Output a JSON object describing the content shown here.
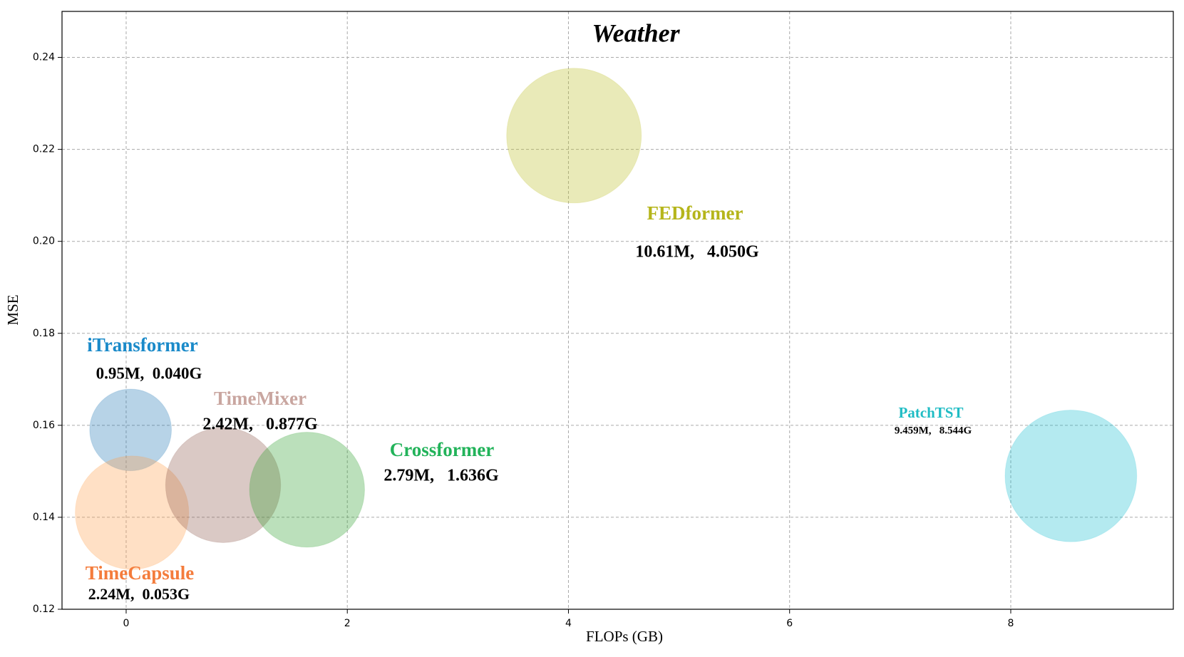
{
  "chart_data": {
    "type": "bubble",
    "title": "Weather",
    "x_label": "FLOPs (GB)",
    "y_label": "MSE",
    "xlim": [
      -0.58,
      9.47
    ],
    "ylim": [
      0.12,
      0.25
    ],
    "xticks": [
      0,
      2,
      4,
      6,
      8
    ],
    "yticks": [
      0.12,
      0.14,
      0.16,
      0.18,
      {
        "value": 0.2,
        "label": "0.20"
      },
      0.22,
      0.24
    ],
    "grid": true,
    "series": [
      {
        "name": "iTransformer",
        "color": "#1f77b4",
        "label_color": "#1a8ac9",
        "x": [
          0.04
        ],
        "values": [
          0.159
        ],
        "sizes": [
          2916
        ],
        "annotation": "0.95M,  0.040G"
      },
      {
        "name": "TimeCapsule",
        "color": "#ff9f4a",
        "label_color": "#f47c3c",
        "x": [
          0.053
        ],
        "values": [
          0.141
        ],
        "sizes": [
          5625
        ],
        "annotation": "2.24M,  0.053G"
      },
      {
        "name": "TimeMixer",
        "color": "#8c564b",
        "label_color": "#c9a6a0",
        "x": [
          0.877
        ],
        "values": [
          0.147
        ],
        "sizes": [
          5776
        ],
        "annotation": "2.42M,   0.877G"
      },
      {
        "name": "Crossformer",
        "color": "#2ca02c",
        "label_color": "#22b35a",
        "x": [
          1.636
        ],
        "values": [
          0.146
        ],
        "sizes": [
          5776
        ],
        "annotation": "2.79M,   1.636G"
      },
      {
        "name": "FEDformer",
        "color": "#bcbd22",
        "label_color": "#b5b51a",
        "x": [
          4.05
        ],
        "values": [
          0.223
        ],
        "sizes": [
          7921
        ],
        "annotation": "10.61M,   4.050G"
      },
      {
        "name": "PatchTST",
        "color": "#17becf",
        "label_color": "#1fbcc4",
        "x": [
          8.544
        ],
        "values": [
          0.149
        ],
        "sizes": [
          7569
        ],
        "annotation": "9.459M,   8.544G"
      }
    ]
  }
}
